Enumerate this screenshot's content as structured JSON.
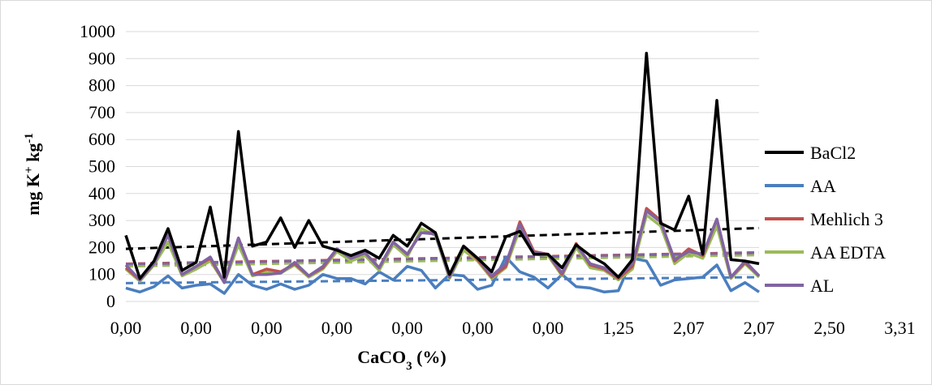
{
  "chart_data": {
    "type": "line",
    "title": "",
    "ylabel": "mg K⁺ kg⁻¹",
    "ylabel_parts": {
      "base": "mg K",
      "sup1": "+",
      "mid": " kg",
      "sup2": "-1"
    },
    "xlabel": "CaCO₃ (%)",
    "xlabel_parts": {
      "base": "CaCO",
      "sub": "3",
      "rest": " (%)"
    },
    "ylim": [
      0,
      1000
    ],
    "yticks": [
      "0",
      "100",
      "200",
      "300",
      "400",
      "500",
      "600",
      "700",
      "800",
      "900",
      "1000"
    ],
    "xtick_labels": [
      {
        "index": 0,
        "label": "0,00"
      },
      {
        "index": 5,
        "label": "0,00"
      },
      {
        "index": 10,
        "label": "0,00"
      },
      {
        "index": 15,
        "label": "0,00"
      },
      {
        "index": 20,
        "label": "0,00"
      },
      {
        "index": 25,
        "label": "0,00"
      },
      {
        "index": 30,
        "label": "0,00"
      },
      {
        "index": 35,
        "label": "1,25"
      },
      {
        "index": 40,
        "label": "2,07"
      },
      {
        "index": 45,
        "label": "2,07"
      },
      {
        "index": 50,
        "label": "2,50"
      },
      {
        "index": 55,
        "label": "3,31"
      }
    ],
    "grid": true,
    "legend_position": "right",
    "series": [
      {
        "name": "BaCl2",
        "color": "#000000",
        "values": [
          245,
          85,
          150,
          270,
          115,
          145,
          350,
          90,
          630,
          205,
          220,
          310,
          200,
          300,
          205,
          190,
          170,
          190,
          160,
          245,
          205,
          290,
          255,
          100,
          205,
          160,
          110,
          240,
          260,
          175,
          175,
          125,
          210,
          170,
          140,
          90,
          155,
          920,
          290,
          265,
          390,
          175,
          745,
          155,
          150,
          140
        ]
      },
      {
        "name": "AA",
        "color": "#4a7ebf",
        "values": [
          50,
          35,
          55,
          95,
          50,
          60,
          65,
          30,
          100,
          60,
          45,
          65,
          45,
          60,
          100,
          85,
          85,
          65,
          110,
          80,
          130,
          115,
          50,
          100,
          95,
          45,
          60,
          165,
          110,
          90,
          50,
          100,
          55,
          50,
          35,
          40,
          160,
          150,
          60,
          80,
          85,
          90,
          135,
          40,
          70,
          35
        ]
      },
      {
        "name": "Mehlich 3",
        "color": "#c0504d",
        "values": [
          125,
          80,
          140,
          250,
          100,
          130,
          160,
          70,
          235,
          100,
          120,
          110,
          140,
          95,
          125,
          195,
          160,
          180,
          125,
          220,
          175,
          255,
          255,
          90,
          205,
          155,
          90,
          130,
          295,
          185,
          175,
          100,
          215,
          135,
          120,
          85,
          130,
          345,
          300,
          150,
          195,
          170,
          305,
          90,
          145,
          95
        ]
      },
      {
        "name": "AA EDTA",
        "color": "#9bbb59",
        "values": [
          120,
          75,
          135,
          220,
          95,
          120,
          150,
          70,
          210,
          95,
          110,
          105,
          135,
          90,
          120,
          185,
          150,
          170,
          115,
          210,
          165,
          270,
          245,
          85,
          190,
          150,
          85,
          125,
          270,
          175,
          170,
          95,
          200,
          125,
          115,
          80,
          120,
          320,
          280,
          140,
          180,
          160,
          280,
          85,
          140,
          90
        ]
      },
      {
        "name": "AL",
        "color": "#8064a2",
        "values": [
          135,
          80,
          140,
          245,
          100,
          130,
          165,
          70,
          235,
          100,
          100,
          105,
          145,
          95,
          130,
          195,
          160,
          180,
          125,
          220,
          175,
          255,
          250,
          90,
          205,
          160,
          95,
          140,
          285,
          180,
          175,
          105,
          210,
          140,
          125,
          90,
          140,
          335,
          295,
          155,
          185,
          175,
          305,
          90,
          150,
          95
        ]
      }
    ],
    "trendlines": [
      {
        "series": "BaCl2",
        "start": 195,
        "end": 272
      },
      {
        "series": "AA",
        "start": 68,
        "end": 90
      },
      {
        "series": "Mehlich 3",
        "start": 140,
        "end": 182
      },
      {
        "series": "AA EDTA",
        "start": 130,
        "end": 172
      },
      {
        "series": "AL",
        "start": 138,
        "end": 180
      }
    ]
  }
}
